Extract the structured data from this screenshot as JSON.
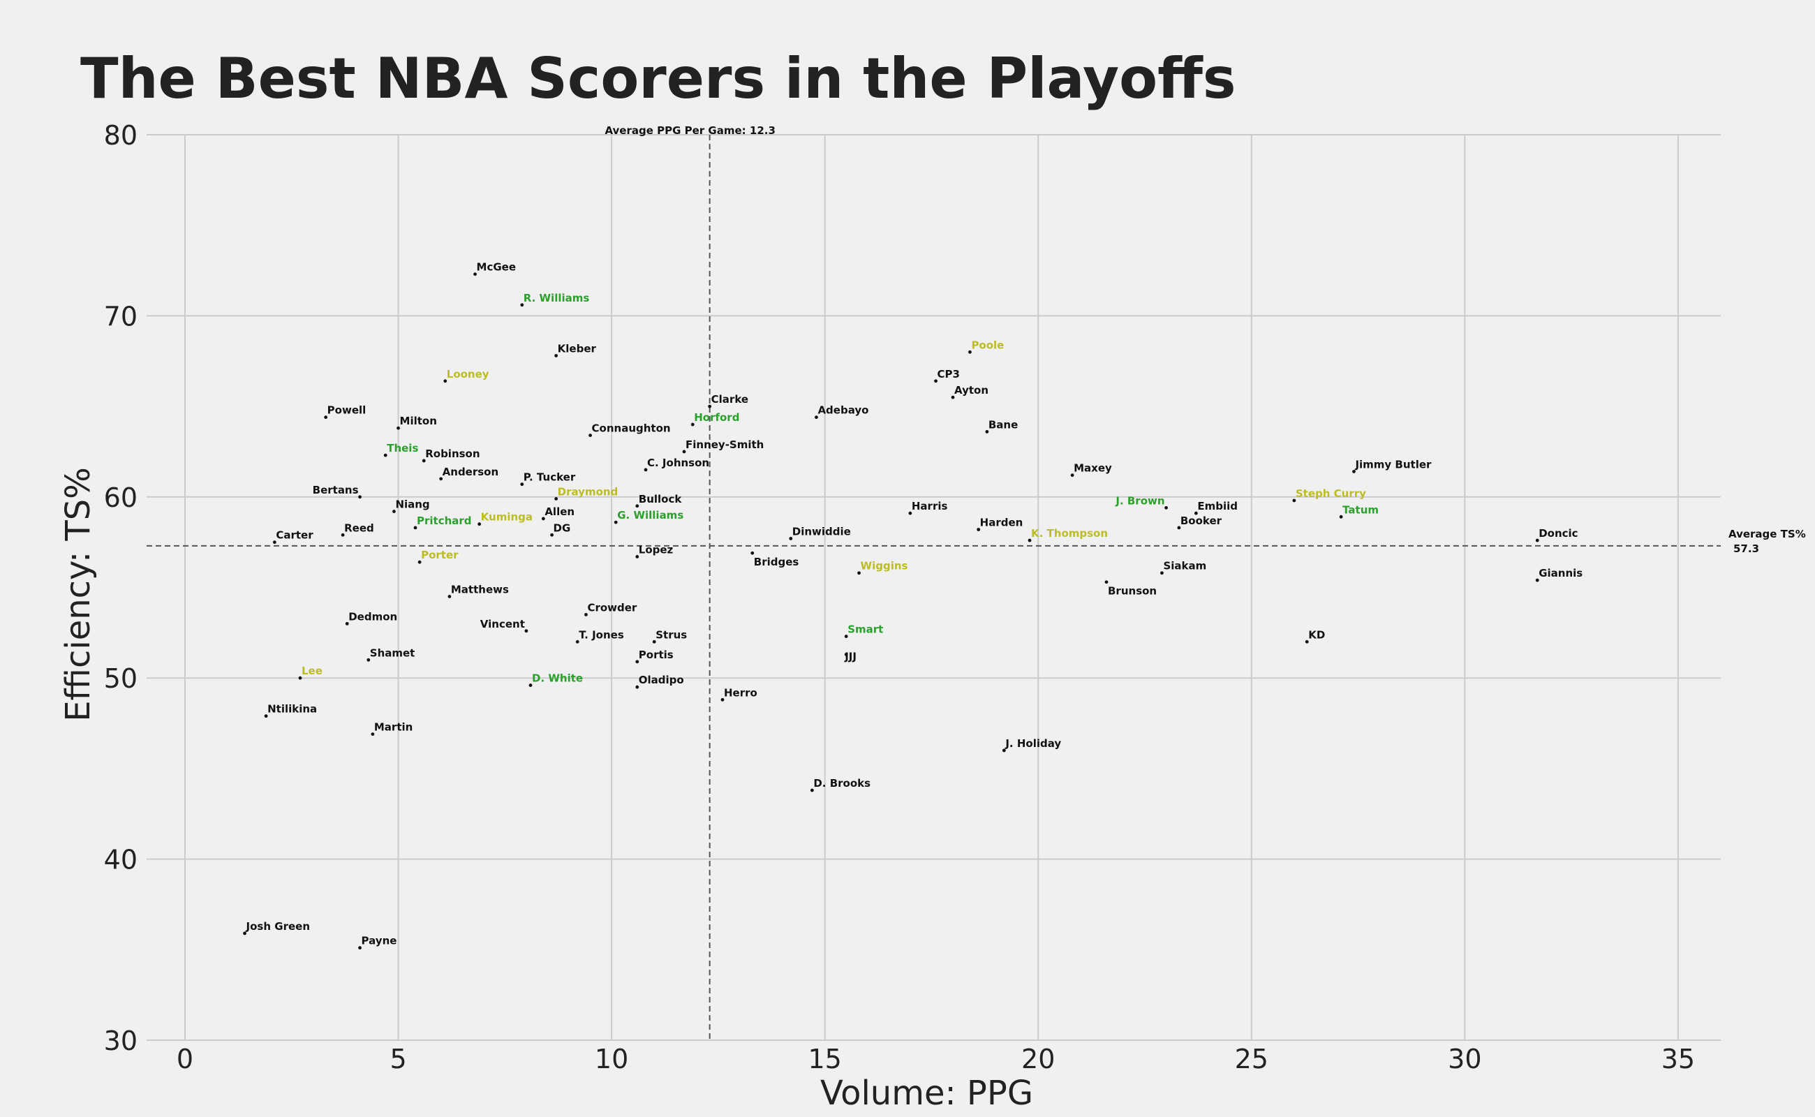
{
  "chart_data": {
    "type": "scatter",
    "title": "The Best NBA Scorers in the Playoffs",
    "xlabel": "Volume: PPG",
    "ylabel": "Efficiency: TS%",
    "xlim": [
      -0.9,
      36
    ],
    "ylim": [
      30,
      80
    ],
    "xticks": [
      0,
      5,
      10,
      15,
      20,
      25,
      30,
      35
    ],
    "yticks": [
      30,
      40,
      50,
      60,
      70,
      80
    ],
    "grid": true,
    "reference_lines": {
      "vertical": {
        "value": 12.3,
        "label": "Average PPG Per Game: 12.3"
      },
      "horizontal": {
        "value": 57.3,
        "label_line1": "Average TS%",
        "label_line2": "57.3"
      }
    },
    "colors": {
      "background": "#f0f0f0",
      "grid": "#cbcbcb",
      "text": "#222222",
      "default": "#111111",
      "green": "#2ca02c",
      "yellow": "#bcbd22"
    },
    "points": [
      {
        "name": "McGee",
        "x": 6.8,
        "y": 72.3,
        "color": "default"
      },
      {
        "name": "R. Williams",
        "x": 7.9,
        "y": 70.6,
        "color": "green"
      },
      {
        "name": "Kleber",
        "x": 8.7,
        "y": 67.8,
        "color": "default"
      },
      {
        "name": "Looney",
        "x": 6.1,
        "y": 66.4,
        "color": "yellow"
      },
      {
        "name": "Powell",
        "x": 3.3,
        "y": 64.4,
        "color": "default"
      },
      {
        "name": "Milton",
        "x": 5.0,
        "y": 63.8,
        "color": "default"
      },
      {
        "name": "Theis",
        "x": 4.7,
        "y": 62.3,
        "color": "green"
      },
      {
        "name": "Robinson",
        "x": 5.6,
        "y": 62.0,
        "color": "default"
      },
      {
        "name": "Anderson",
        "x": 6.0,
        "y": 61.0,
        "color": "default"
      },
      {
        "name": "P. Tucker",
        "x": 7.9,
        "y": 60.7,
        "color": "default"
      },
      {
        "name": "Bertans",
        "x": 4.1,
        "y": 60.0,
        "color": "default",
        "anchor": "end"
      },
      {
        "name": "Niang",
        "x": 4.9,
        "y": 59.2,
        "color": "default"
      },
      {
        "name": "Kuminga",
        "x": 6.9,
        "y": 58.5,
        "color": "yellow"
      },
      {
        "name": "Pritchard",
        "x": 5.4,
        "y": 58.3,
        "color": "green"
      },
      {
        "name": "Reed",
        "x": 3.7,
        "y": 57.9,
        "color": "default"
      },
      {
        "name": "Carter",
        "x": 2.1,
        "y": 57.5,
        "color": "default"
      },
      {
        "name": "Porter",
        "x": 5.5,
        "y": 56.4,
        "color": "yellow"
      },
      {
        "name": "Draymond",
        "x": 8.7,
        "y": 59.9,
        "color": "yellow"
      },
      {
        "name": "Allen",
        "x": 8.4,
        "y": 58.8,
        "color": "default"
      },
      {
        "name": "DG",
        "x": 8.6,
        "y": 57.9,
        "color": "default"
      },
      {
        "name": "Matthews",
        "x": 6.2,
        "y": 54.5,
        "color": "default"
      },
      {
        "name": "Dedmon",
        "x": 3.8,
        "y": 53.0,
        "color": "default"
      },
      {
        "name": "Vincent",
        "x": 8.0,
        "y": 52.6,
        "color": "default",
        "anchor": "end"
      },
      {
        "name": "Shamet",
        "x": 4.3,
        "y": 51.0,
        "color": "default"
      },
      {
        "name": "Lee",
        "x": 2.7,
        "y": 50.0,
        "color": "yellow"
      },
      {
        "name": "Ntilikina",
        "x": 1.9,
        "y": 47.9,
        "color": "default"
      },
      {
        "name": "Martin",
        "x": 4.4,
        "y": 46.9,
        "color": "default"
      },
      {
        "name": "D. White",
        "x": 8.1,
        "y": 49.6,
        "color": "green"
      },
      {
        "name": "Josh Green",
        "x": 1.4,
        "y": 35.9,
        "color": "default"
      },
      {
        "name": "Payne",
        "x": 4.1,
        "y": 35.1,
        "color": "default"
      },
      {
        "name": "Connaughton",
        "x": 9.5,
        "y": 63.4,
        "color": "default"
      },
      {
        "name": "Clarke",
        "x": 12.3,
        "y": 65.0,
        "color": "default"
      },
      {
        "name": "Horford",
        "x": 11.9,
        "y": 64.0,
        "color": "green"
      },
      {
        "name": "Finney-Smith",
        "x": 11.7,
        "y": 62.5,
        "color": "default"
      },
      {
        "name": "C. Johnson",
        "x": 10.8,
        "y": 61.5,
        "color": "default"
      },
      {
        "name": "Bullock",
        "x": 10.6,
        "y": 59.5,
        "color": "default"
      },
      {
        "name": "G. Williams",
        "x": 10.1,
        "y": 58.6,
        "color": "green"
      },
      {
        "name": "Lopez",
        "x": 10.6,
        "y": 56.7,
        "color": "default"
      },
      {
        "name": "Crowder",
        "x": 9.4,
        "y": 53.5,
        "color": "default"
      },
      {
        "name": "T. Jones",
        "x": 9.2,
        "y": 52.0,
        "color": "default"
      },
      {
        "name": "Strus",
        "x": 11.0,
        "y": 52.0,
        "color": "default"
      },
      {
        "name": "Portis",
        "x": 10.6,
        "y": 50.9,
        "color": "default"
      },
      {
        "name": "Oladipo",
        "x": 10.6,
        "y": 49.5,
        "color": "default"
      },
      {
        "name": "Herro",
        "x": 12.6,
        "y": 48.8,
        "color": "default"
      },
      {
        "name": "Adebayo",
        "x": 14.8,
        "y": 64.4,
        "color": "default"
      },
      {
        "name": "Dinwiddie",
        "x": 14.2,
        "y": 57.7,
        "color": "default"
      },
      {
        "name": "Bridges",
        "x": 13.3,
        "y": 56.9,
        "color": "default",
        "label_dx": 2,
        "label_dy": 18
      },
      {
        "name": "Wiggins",
        "x": 15.8,
        "y": 55.8,
        "color": "yellow"
      },
      {
        "name": "Smart",
        "x": 15.5,
        "y": 52.3,
        "color": "green"
      },
      {
        "name": "JJJ",
        "x": 15.5,
        "y": 51.3,
        "color": "default",
        "label_dx": -2,
        "label_dy": 8
      },
      {
        "name": "D. Brooks",
        "x": 14.7,
        "y": 43.8,
        "color": "default"
      },
      {
        "name": "Harris",
        "x": 17.0,
        "y": 59.1,
        "color": "default"
      },
      {
        "name": "Poole",
        "x": 18.4,
        "y": 68.0,
        "color": "yellow"
      },
      {
        "name": "CP3",
        "x": 17.6,
        "y": 66.4,
        "color": "default"
      },
      {
        "name": "Ayton",
        "x": 18.0,
        "y": 65.5,
        "color": "default"
      },
      {
        "name": "Bane",
        "x": 18.8,
        "y": 63.6,
        "color": "default"
      },
      {
        "name": "Harden",
        "x": 18.6,
        "y": 58.2,
        "color": "default"
      },
      {
        "name": "K. Thompson",
        "x": 19.8,
        "y": 57.6,
        "color": "yellow"
      },
      {
        "name": "J. Holiday",
        "x": 19.2,
        "y": 46.0,
        "color": "default"
      },
      {
        "name": "Maxey",
        "x": 20.8,
        "y": 61.2,
        "color": "default"
      },
      {
        "name": "J. Brown",
        "x": 23.0,
        "y": 59.4,
        "color": "green",
        "anchor": "end"
      },
      {
        "name": "Embiid",
        "x": 23.7,
        "y": 59.1,
        "color": "default"
      },
      {
        "name": "Booker",
        "x": 23.3,
        "y": 58.3,
        "color": "default"
      },
      {
        "name": "Siakam",
        "x": 22.9,
        "y": 55.8,
        "color": "default"
      },
      {
        "name": "Brunson",
        "x": 21.6,
        "y": 55.3,
        "color": "default",
        "label_dx": 2,
        "label_dy": 18
      },
      {
        "name": "Steph Curry",
        "x": 26.0,
        "y": 59.8,
        "color": "yellow"
      },
      {
        "name": "Tatum",
        "x": 27.1,
        "y": 58.9,
        "color": "green"
      },
      {
        "name": "Jimmy Butler",
        "x": 27.4,
        "y": 61.4,
        "color": "default"
      },
      {
        "name": "KD",
        "x": 26.3,
        "y": 52.0,
        "color": "default"
      },
      {
        "name": "Doncic",
        "x": 31.7,
        "y": 57.6,
        "color": "default"
      },
      {
        "name": "Giannis",
        "x": 31.7,
        "y": 55.4,
        "color": "default"
      }
    ]
  }
}
